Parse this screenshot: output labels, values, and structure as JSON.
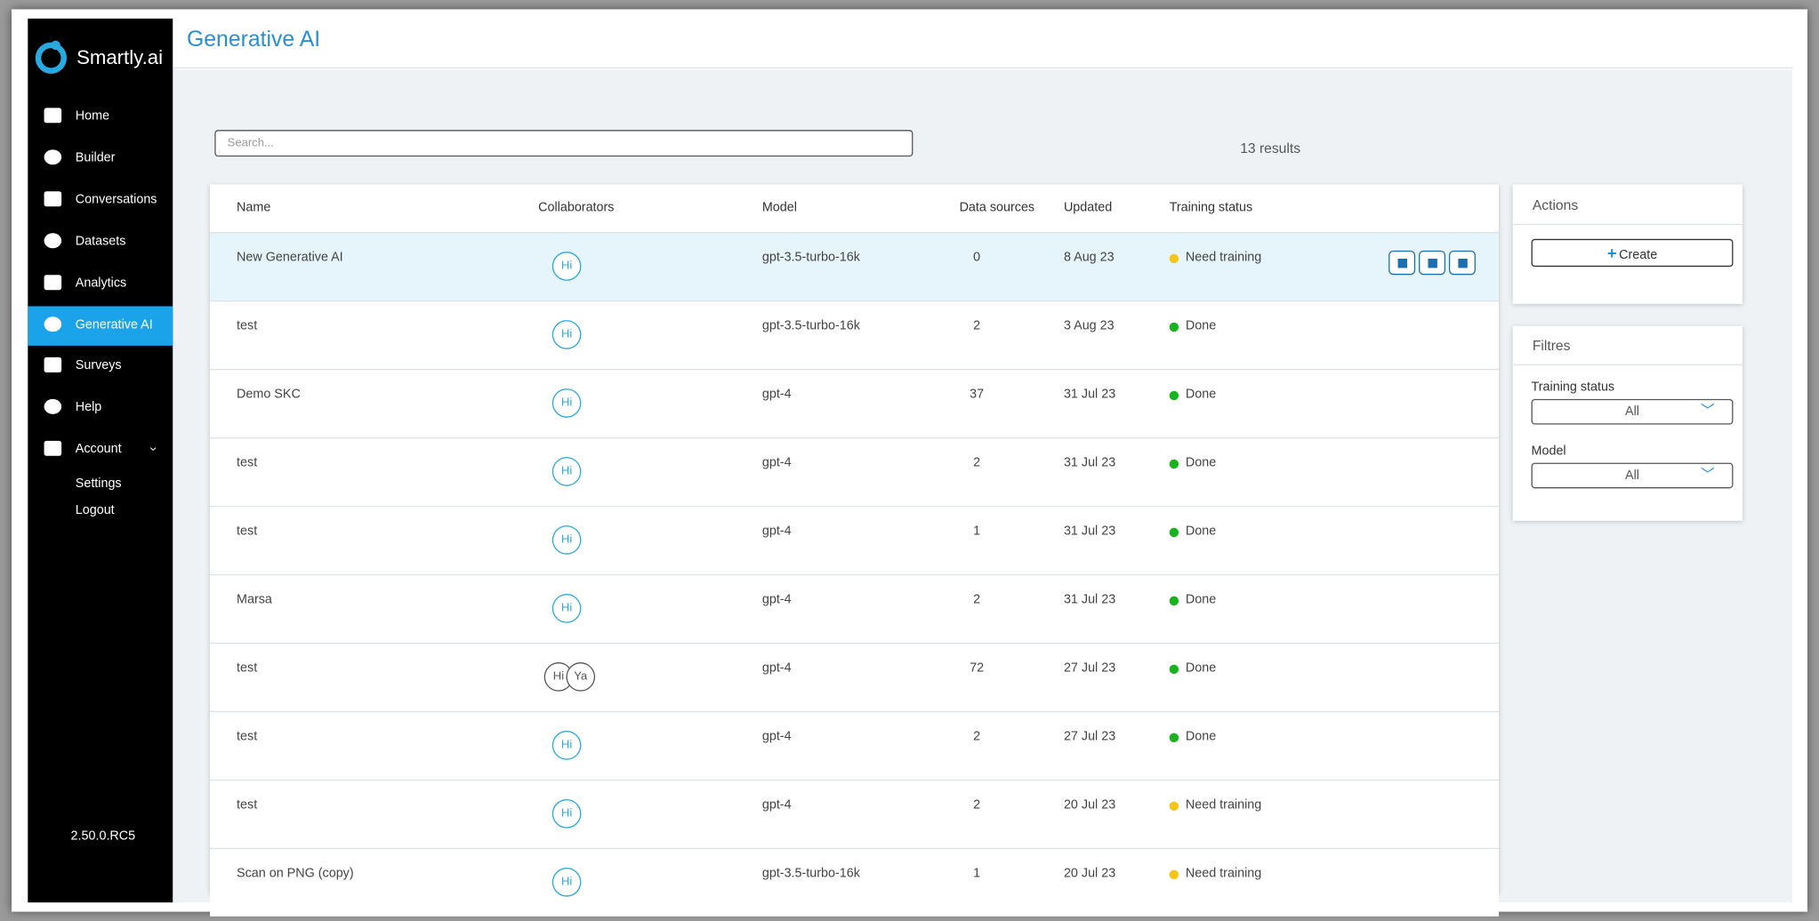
{
  "sidebar": {
    "brand": "Smartly.ai",
    "nav": [
      "Home",
      "Builder",
      "Conversations",
      "Datasets",
      "Analytics",
      "Generative AI",
      "Surveys",
      "Help",
      "Account"
    ],
    "submenu": [
      "Settings",
      "Logout"
    ],
    "version": "2.50.0.RC5"
  },
  "header": {
    "title": "Generative AI"
  },
  "search": {
    "placeholder": "Search...",
    "results": "13 results"
  },
  "table": {
    "columns": [
      "Name",
      "Collaborators",
      "Model",
      "Data sources",
      "Updated",
      "Training status"
    ],
    "rows": [
      {
        "name": "New Generative AI",
        "collaborators": [
          "Hi"
        ],
        "model": "gpt-3.5-turbo-16k",
        "data_sources": 0,
        "updated": "8 Aug 23",
        "status": "Need training",
        "status_color": "#f5c518"
      },
      {
        "name": "test",
        "collaborators": [
          "Hi"
        ],
        "model": "gpt-3.5-turbo-16k",
        "data_sources": 2,
        "updated": "3 Aug 23",
        "status": "Done",
        "status_color": "#19b31e"
      },
      {
        "name": "Demo SKC",
        "collaborators": [
          "Hi"
        ],
        "model": "gpt-4",
        "data_sources": 37,
        "updated": "31 Jul 23",
        "status": "Done",
        "status_color": "#19b31e"
      },
      {
        "name": "test",
        "collaborators": [
          "Hi"
        ],
        "model": "gpt-4",
        "data_sources": 2,
        "updated": "31 Jul 23",
        "status": "Done",
        "status_color": "#19b31e"
      },
      {
        "name": "test",
        "collaborators": [
          "Hi"
        ],
        "model": "gpt-4",
        "data_sources": 1,
        "updated": "31 Jul 23",
        "status": "Done",
        "status_color": "#19b31e"
      },
      {
        "name": "Marsa",
        "collaborators": [
          "Hi"
        ],
        "model": "gpt-4",
        "data_sources": 2,
        "updated": "31 Jul 23",
        "status": "Done",
        "status_color": "#19b31e"
      },
      {
        "name": "test",
        "collaborators": [
          "Hi",
          "Ya"
        ],
        "model": "gpt-4",
        "data_sources": 72,
        "updated": "27 Jul 23",
        "status": "Done",
        "status_color": "#19b31e"
      },
      {
        "name": "test",
        "collaborators": [
          "Hi"
        ],
        "model": "gpt-4",
        "data_sources": 2,
        "updated": "27 Jul 23",
        "status": "Done",
        "status_color": "#19b31e"
      },
      {
        "name": "test",
        "collaborators": [
          "Hi"
        ],
        "model": "gpt-4",
        "data_sources": 2,
        "updated": "20 Jul 23",
        "status": "Need training",
        "status_color": "#f5c518"
      },
      {
        "name": "Scan on PNG (copy)",
        "collaborators": [
          "Hi"
        ],
        "model": "gpt-3.5-turbo-16k",
        "data_sources": 1,
        "updated": "20 Jul 23",
        "status": "Need training",
        "status_color": "#f5c518"
      }
    ]
  },
  "actions": {
    "title": "Actions",
    "create": "Create"
  },
  "filters": {
    "title": "Filtres",
    "fields": [
      {
        "label": "Training status",
        "value": "All"
      },
      {
        "label": "Model",
        "value": "All"
      }
    ]
  }
}
